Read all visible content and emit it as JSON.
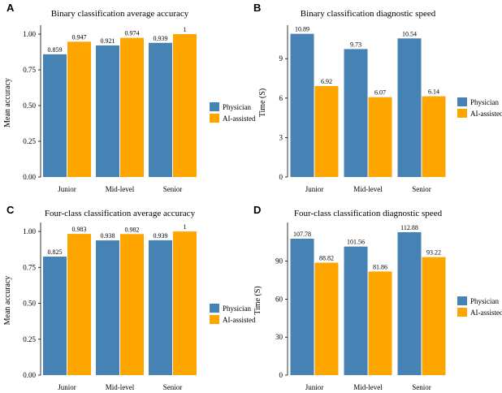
{
  "colors": {
    "physician": "#4682b4",
    "ai_assisted": "#ffa500",
    "axis": "#000000"
  },
  "chart_data": [
    {
      "panel": "A",
      "type": "bar",
      "title": "Binary classification average accuracy",
      "xlabel": "",
      "ylabel": "Mean accuracy",
      "categories": [
        "Junior",
        "Mid-level",
        "Senior"
      ],
      "series": [
        {
          "name": "Physician",
          "values": [
            0.859,
            0.921,
            0.939
          ],
          "labels": [
            "0.859",
            "0.921",
            "0.939"
          ]
        },
        {
          "name": "AI-assisted",
          "values": [
            0.947,
            0.974,
            1
          ],
          "labels": [
            "0.947",
            "0.974",
            "1"
          ]
        }
      ],
      "yticks": [
        0,
        0.25,
        0.5,
        0.75,
        1.0
      ],
      "ytick_labels": [
        "0.00",
        "0.25",
        "0.50",
        "0.75",
        "1.00"
      ],
      "ylim": [
        0,
        1.04
      ],
      "grid": false,
      "legend_position": "right"
    },
    {
      "panel": "B",
      "type": "bar",
      "title": "Binary classification diagnostic speed",
      "xlabel": "",
      "ylabel": "Time (S)",
      "categories": [
        "Junior",
        "Mid-level",
        "Senior"
      ],
      "series": [
        {
          "name": "Physician",
          "values": [
            10.89,
            9.73,
            10.54
          ],
          "labels": [
            "10.89",
            "9.73",
            "10.54"
          ]
        },
        {
          "name": "AI-assisted",
          "values": [
            6.92,
            6.07,
            6.14
          ],
          "labels": [
            "6.92",
            "6.07",
            "6.14"
          ]
        }
      ],
      "yticks": [
        0,
        3,
        6,
        9
      ],
      "ytick_labels": [
        "0",
        "3",
        "6",
        "9"
      ],
      "ylim": [
        0,
        11.3
      ],
      "grid": false,
      "legend_position": "right"
    },
    {
      "panel": "C",
      "type": "bar",
      "title": "Four-class classification average accuracy",
      "xlabel": "",
      "ylabel": "Mean accuracy",
      "categories": [
        "Junior",
        "Mid-level",
        "Senior"
      ],
      "series": [
        {
          "name": "Physician",
          "values": [
            0.825,
            0.938,
            0.939
          ],
          "labels": [
            "0.825",
            "0.938",
            "0.939"
          ]
        },
        {
          "name": "AI-assisted",
          "values": [
            0.983,
            0.982,
            1
          ],
          "labels": [
            "0.983",
            "0.982",
            "1"
          ]
        }
      ],
      "yticks": [
        0,
        0.25,
        0.5,
        0.75,
        1.0
      ],
      "ytick_labels": [
        "0.00",
        "0.25",
        "0.50",
        "0.75",
        "1.00"
      ],
      "ylim": [
        0,
        1.04
      ],
      "grid": false,
      "legend_position": "right"
    },
    {
      "panel": "D",
      "type": "bar",
      "title": "Four-class classification diagnostic speed",
      "xlabel": "",
      "ylabel": "Time (S)",
      "categories": [
        "Junior",
        "Mid-level",
        "Senior"
      ],
      "series": [
        {
          "name": "Physician",
          "values": [
            107.78,
            101.56,
            112.88
          ],
          "labels": [
            "107.78",
            "101.56",
            "112.88"
          ]
        },
        {
          "name": "AI-assisted",
          "values": [
            88.82,
            81.86,
            93.22
          ],
          "labels": [
            "88.82",
            "81.86",
            "93.22"
          ]
        }
      ],
      "yticks": [
        0,
        30,
        60,
        90
      ],
      "ytick_labels": [
        "0",
        "30",
        "60",
        "90"
      ],
      "ylim": [
        0,
        118
      ],
      "grid": false,
      "legend_position": "right"
    }
  ]
}
